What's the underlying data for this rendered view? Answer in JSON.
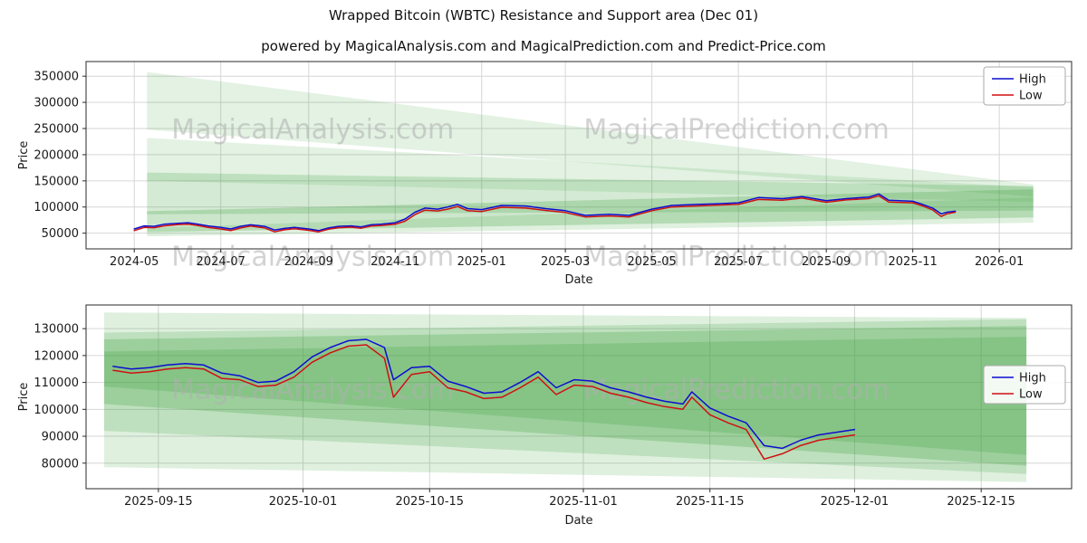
{
  "title": "Wrapped Bitcoin (WBTC) Resistance and Support area (Dec 01)",
  "subtitle": "powered by MagicalAnalysis.com and MagicalPrediction.com and Predict-Price.com",
  "watermarks": {
    "left": "MagicalAnalysis.com",
    "right": "MagicalPrediction.com"
  },
  "legend": {
    "items": [
      {
        "label": "High",
        "color": "#0d0dcf"
      },
      {
        "label": "Low",
        "color": "#cf1111"
      }
    ]
  },
  "colors": {
    "high": "#0d0dcf",
    "low": "#cf1111",
    "band": "#3aa03a",
    "grid": "#d6d6d6",
    "watermark": "#b0b0b0"
  },
  "chart_data": [
    {
      "type": "line",
      "title": "",
      "xlabel": "Date",
      "ylabel": "Price",
      "xdomain": [
        "2024-03-28",
        "2026-02-21"
      ],
      "ylim": [
        20000,
        378000
      ],
      "yticks": [
        50000,
        100000,
        150000,
        200000,
        250000,
        300000,
        350000
      ],
      "xticks": [
        {
          "label": "2024-05",
          "date": "2024-05-01"
        },
        {
          "label": "2024-07",
          "date": "2024-07-01"
        },
        {
          "label": "2024-09",
          "date": "2024-09-01"
        },
        {
          "label": "2024-11",
          "date": "2024-11-01"
        },
        {
          "label": "2025-01",
          "date": "2025-01-01"
        },
        {
          "label": "2025-03",
          "date": "2025-03-01"
        },
        {
          "label": "2025-05",
          "date": "2025-05-01"
        },
        {
          "label": "2025-07",
          "date": "2025-07-01"
        },
        {
          "label": "2025-09",
          "date": "2025-09-01"
        },
        {
          "label": "2025-11",
          "date": "2025-11-01"
        },
        {
          "label": "2026-01",
          "date": "2026-01-01"
        }
      ],
      "x": [
        "2024-05-01",
        "2024-05-08",
        "2024-05-15",
        "2024-05-22",
        "2024-06-01",
        "2024-06-08",
        "2024-06-15",
        "2024-06-22",
        "2024-07-01",
        "2024-07-08",
        "2024-07-15",
        "2024-07-22",
        "2024-08-01",
        "2024-08-08",
        "2024-08-15",
        "2024-08-22",
        "2024-09-01",
        "2024-09-08",
        "2024-09-15",
        "2024-09-22",
        "2024-10-01",
        "2024-10-08",
        "2024-10-15",
        "2024-10-22",
        "2024-11-01",
        "2024-11-08",
        "2024-11-15",
        "2024-11-22",
        "2024-12-01",
        "2024-12-08",
        "2024-12-15",
        "2024-12-22",
        "2025-01-01",
        "2025-01-15",
        "2025-02-01",
        "2025-02-15",
        "2025-03-01",
        "2025-03-15",
        "2025-04-01",
        "2025-04-15",
        "2025-05-01",
        "2025-05-15",
        "2025-06-01",
        "2025-06-15",
        "2025-07-01",
        "2025-07-15",
        "2025-08-01",
        "2025-08-15",
        "2025-09-01",
        "2025-09-15",
        "2025-10-01",
        "2025-10-08",
        "2025-10-15",
        "2025-11-01",
        "2025-11-08",
        "2025-11-15",
        "2025-11-21",
        "2025-11-25",
        "2025-12-01"
      ],
      "series": [
        {
          "name": "High",
          "color": "#0d0dcf",
          "values": [
            58000,
            64000,
            63000,
            67000,
            69000,
            70000,
            67000,
            64000,
            61000,
            58000,
            63000,
            66000,
            63000,
            56000,
            59000,
            61000,
            58000,
            55000,
            60000,
            63000,
            64000,
            62000,
            66000,
            67000,
            70000,
            77000,
            90000,
            98000,
            96000,
            100000,
            105000,
            97000,
            95000,
            103000,
            102000,
            97000,
            93000,
            84000,
            86000,
            84000,
            96000,
            103000,
            105000,
            106000,
            108000,
            118000,
            116000,
            120000,
            112000,
            116000,
            119000,
            125000,
            113000,
            111000,
            105000,
            98000,
            87000,
            90000,
            92000
          ]
        },
        {
          "name": "Low",
          "color": "#cf1111",
          "values": [
            55000,
            61000,
            60500,
            64000,
            66500,
            67000,
            64500,
            61000,
            58000,
            55000,
            60000,
            63500,
            60000,
            52500,
            56500,
            58500,
            55500,
            52500,
            57500,
            60500,
            61500,
            59500,
            63500,
            64500,
            67000,
            73000,
            85500,
            94000,
            92500,
            96000,
            101000,
            93000,
            91500,
            99500,
            98000,
            93500,
            89500,
            81000,
            83000,
            81000,
            93000,
            100000,
            102000,
            103500,
            105000,
            114500,
            113000,
            117000,
            109000,
            113500,
            116000,
            121500,
            109500,
            108000,
            102000,
            94500,
            82000,
            87000,
            90000
          ]
        }
      ],
      "bands": [
        {
          "x0": "2024-05-10",
          "x1": "2026-01-25",
          "left": [
            248000,
            358000
          ],
          "right": [
            120000,
            143000
          ],
          "opacity": 0.14
        },
        {
          "x0": "2024-05-10",
          "x1": "2026-01-25",
          "left": [
            150000,
            232000
          ],
          "right": [
            110000,
            138000
          ],
          "opacity": 0.14
        },
        {
          "x0": "2024-05-10",
          "x1": "2026-01-25",
          "left": [
            86000,
            166000
          ],
          "right": [
            93000,
            140000
          ],
          "opacity": 0.22
        },
        {
          "x0": "2024-05-10",
          "x1": "2026-01-25",
          "left": [
            52000,
            92000
          ],
          "right": [
            80000,
            134000
          ],
          "opacity": 0.26
        },
        {
          "x0": "2024-05-10",
          "x1": "2026-01-25",
          "left": [
            44000,
            60000
          ],
          "right": [
            70000,
            118000
          ],
          "opacity": 0.16
        }
      ],
      "legend_pos": "top-right",
      "legend_y": 0.03,
      "watermark_rows": [
        0.41,
        1.09
      ],
      "grid": true
    },
    {
      "type": "line",
      "title": "",
      "xlabel": "Date",
      "ylabel": "Price",
      "xdomain": [
        "2025-09-07",
        "2025-12-25"
      ],
      "ylim": [
        70500,
        138800
      ],
      "yticks": [
        80000,
        90000,
        100000,
        110000,
        120000,
        130000
      ],
      "xticks": [
        {
          "label": "2025-09-15",
          "date": "2025-09-15"
        },
        {
          "label": "2025-10-01",
          "date": "2025-10-01"
        },
        {
          "label": "2025-10-15",
          "date": "2025-10-15"
        },
        {
          "label": "2025-11-01",
          "date": "2025-11-01"
        },
        {
          "label": "2025-11-15",
          "date": "2025-11-15"
        },
        {
          "label": "2025-12-01",
          "date": "2025-12-01"
        },
        {
          "label": "2025-12-15",
          "date": "2025-12-15"
        }
      ],
      "x": [
        "2025-09-10",
        "2025-09-12",
        "2025-09-14",
        "2025-09-16",
        "2025-09-18",
        "2025-09-20",
        "2025-09-22",
        "2025-09-24",
        "2025-09-26",
        "2025-09-28",
        "2025-09-30",
        "2025-10-02",
        "2025-10-04",
        "2025-10-06",
        "2025-10-08",
        "2025-10-10",
        "2025-10-11",
        "2025-10-13",
        "2025-10-15",
        "2025-10-17",
        "2025-10-19",
        "2025-10-21",
        "2025-10-23",
        "2025-10-25",
        "2025-10-27",
        "2025-10-29",
        "2025-10-31",
        "2025-11-02",
        "2025-11-04",
        "2025-11-06",
        "2025-11-08",
        "2025-11-10",
        "2025-11-12",
        "2025-11-13",
        "2025-11-15",
        "2025-11-17",
        "2025-11-19",
        "2025-11-21",
        "2025-11-23",
        "2025-11-25",
        "2025-11-27",
        "2025-11-29",
        "2025-12-01"
      ],
      "series": [
        {
          "name": "High",
          "color": "#0d0dcf",
          "values": [
            116000,
            115000,
            115500,
            116500,
            117000,
            116500,
            113500,
            112500,
            110000,
            110500,
            114000,
            119500,
            123000,
            125500,
            126000,
            123000,
            111000,
            115500,
            116000,
            110500,
            108500,
            106000,
            106500,
            110000,
            114000,
            108000,
            111000,
            110500,
            108000,
            106500,
            104500,
            103000,
            102000,
            106500,
            100500,
            97500,
            95000,
            86500,
            85500,
            88500,
            90500,
            91500,
            92500
          ]
        },
        {
          "name": "Low",
          "color": "#cf1111",
          "values": [
            114500,
            113500,
            114000,
            115000,
            115500,
            115000,
            111500,
            111000,
            108500,
            109000,
            112000,
            117500,
            121000,
            123500,
            124000,
            119000,
            104500,
            113000,
            114000,
            108000,
            106500,
            104000,
            104500,
            108000,
            112000,
            105500,
            109000,
            108500,
            106000,
            104500,
            102500,
            101000,
            100000,
            104500,
            98000,
            95000,
            92500,
            81500,
            83500,
            86500,
            88500,
            89500,
            90500
          ]
        }
      ],
      "bands": [
        {
          "x0": "2025-09-09",
          "x1": "2025-12-20",
          "left": [
            78500,
            136000
          ],
          "right": [
            73000,
            134000
          ],
          "opacity": 0.16
        },
        {
          "x0": "2025-09-09",
          "x1": "2025-12-20",
          "left": [
            92000,
            128500
          ],
          "right": [
            76000,
            133500
          ],
          "opacity": 0.2
        },
        {
          "x0": "2025-09-09",
          "x1": "2025-12-20",
          "left": [
            102000,
            126000
          ],
          "right": [
            79000,
            131000
          ],
          "opacity": 0.26
        },
        {
          "x0": "2025-09-09",
          "x1": "2025-12-20",
          "left": [
            108500,
            121500
          ],
          "right": [
            83000,
            127000
          ],
          "opacity": 0.22
        }
      ],
      "legend_pos": "right",
      "legend_y": 0.33,
      "watermark_rows": [
        0.51
      ],
      "grid": true
    }
  ]
}
